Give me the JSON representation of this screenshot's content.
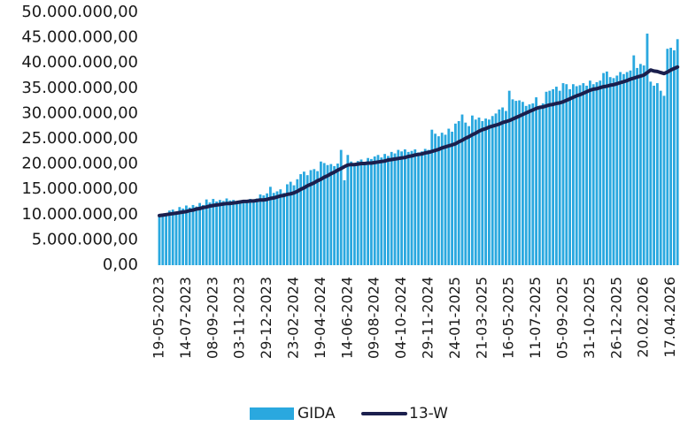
{
  "chart_data": {
    "type": "bar_line",
    "categories": [
      "19-05-2023",
      null,
      null,
      null,
      null,
      null,
      null,
      null,
      "14-07-2023",
      null,
      null,
      null,
      null,
      null,
      null,
      null,
      "08-09-2023",
      null,
      null,
      null,
      null,
      null,
      null,
      null,
      "03-11-2023",
      null,
      null,
      null,
      null,
      null,
      null,
      null,
      "29-12-2023",
      null,
      null,
      null,
      null,
      null,
      null,
      null,
      "23-02-2024",
      null,
      null,
      null,
      null,
      null,
      null,
      null,
      "19-04-2024",
      null,
      null,
      null,
      null,
      null,
      null,
      null,
      "14-06-2024",
      null,
      null,
      null,
      null,
      null,
      null,
      null,
      "09-08-2024",
      null,
      null,
      null,
      null,
      null,
      null,
      null,
      "04-10-2024",
      null,
      null,
      null,
      null,
      null,
      null,
      null,
      "29-11-2024",
      null,
      null,
      null,
      null,
      null,
      null,
      null,
      "24-01-2025",
      null,
      null,
      null,
      null,
      null,
      null,
      null,
      "21-03-2025",
      null,
      null,
      null,
      null,
      null,
      null,
      null,
      "16-05-2025",
      null,
      null,
      null,
      null,
      null,
      null,
      null,
      "11-07-2025",
      null,
      null,
      null,
      null,
      null,
      null,
      null,
      "05-09-2025",
      null,
      null,
      null,
      null,
      null,
      null,
      null,
      "31-10-2025",
      null,
      null,
      null,
      null,
      null,
      null,
      null,
      "26-12-2025",
      null,
      null,
      null,
      null,
      null,
      null,
      null,
      "20.02.2026",
      null,
      null,
      null,
      null,
      null,
      null,
      null,
      "17.04.2026",
      null,
      null
    ],
    "series": [
      {
        "name": "GIDA",
        "type": "bar",
        "color": "#2aa8df",
        "values": [
          9900000,
          10200000,
          10300000,
          10800000,
          11000000,
          10600000,
          11500000,
          11200000,
          11800000,
          11400000,
          11900000,
          11600000,
          12300000,
          11900000,
          13000000,
          12400000,
          13100000,
          12600000,
          12900000,
          12700000,
          13200000,
          12800000,
          12900000,
          12600000,
          12800000,
          12700000,
          12900000,
          13100000,
          12800000,
          13200000,
          14000000,
          13800000,
          14200000,
          15500000,
          14300000,
          14600000,
          15000000,
          14300000,
          16000000,
          16500000,
          15800000,
          17000000,
          18000000,
          18500000,
          17800000,
          18800000,
          19000000,
          18600000,
          20500000,
          20200000,
          19800000,
          20000000,
          19600000,
          20100000,
          22800000,
          16800000,
          21800000,
          20500000,
          20200000,
          20600000,
          20900000,
          20300000,
          21200000,
          21000000,
          21500000,
          21800000,
          21300000,
          22000000,
          21600000,
          22400000,
          22100000,
          22800000,
          22500000,
          22900000,
          22400000,
          22600000,
          22900000,
          22300000,
          22500000,
          23000000,
          22800000,
          26800000,
          26000000,
          25500000,
          26200000,
          25800000,
          27000000,
          26400000,
          28000000,
          28500000,
          29800000,
          28200000,
          27500000,
          29600000,
          28800000,
          29200000,
          28500000,
          29000000,
          28800000,
          29500000,
          30000000,
          30800000,
          31200000,
          30500000,
          34500000,
          32800000,
          32500000,
          32600000,
          32300000,
          31500000,
          31800000,
          32000000,
          33200000,
          31500000,
          32000000,
          34300000,
          34500000,
          34800000,
          35300000,
          34500000,
          36000000,
          35800000,
          34800000,
          35800000,
          35400000,
          35600000,
          36000000,
          35500000,
          36500000,
          35800000,
          36200000,
          36500000,
          38000000,
          38300000,
          37200000,
          37000000,
          37500000,
          38200000,
          37800000,
          38200000,
          38500000,
          41500000,
          39000000,
          39800000,
          39500000,
          45800000,
          36300000,
          35500000,
          36000000,
          34500000,
          33500000,
          42800000,
          43000000,
          42500000,
          44700000
        ]
      },
      {
        "name": "13-W",
        "type": "line",
        "color": "#1b1f4d",
        "values": [
          9800000,
          9900000,
          10000000,
          10100000,
          10200000,
          10300000,
          10400000,
          10500000,
          10600000,
          10800000,
          10900000,
          11100000,
          11200000,
          11400000,
          11500000,
          11700000,
          11800000,
          11900000,
          12000000,
          12100000,
          12200000,
          12200000,
          12300000,
          12400000,
          12500000,
          12600000,
          12600000,
          12700000,
          12700000,
          12800000,
          12900000,
          12900000,
          13000000,
          13200000,
          13300000,
          13500000,
          13700000,
          13800000,
          14000000,
          14100000,
          14300000,
          14600000,
          15000000,
          15300000,
          15700000,
          16000000,
          16300000,
          16700000,
          17000000,
          17400000,
          17700000,
          18100000,
          18400000,
          18800000,
          19100000,
          19500000,
          19800000,
          19900000,
          19900000,
          20000000,
          20100000,
          20100000,
          20200000,
          20200000,
          20300000,
          20400000,
          20500000,
          20600000,
          20800000,
          20900000,
          21000000,
          21100000,
          21200000,
          21300000,
          21500000,
          21600000,
          21800000,
          21900000,
          22000000,
          22200000,
          22300000,
          22500000,
          22700000,
          22900000,
          23200000,
          23400000,
          23600000,
          23800000,
          24000000,
          24400000,
          24700000,
          25100000,
          25400000,
          25800000,
          26100000,
          26500000,
          26800000,
          27000000,
          27300000,
          27500000,
          27700000,
          27900000,
          28200000,
          28400000,
          28600000,
          28900000,
          29200000,
          29500000,
          29800000,
          30100000,
          30400000,
          30700000,
          31000000,
          31200000,
          31300000,
          31500000,
          31700000,
          31800000,
          32000000,
          32100000,
          32300000,
          32600000,
          32900000,
          33200000,
          33500000,
          33700000,
          34000000,
          34300000,
          34600000,
          34800000,
          34900000,
          35100000,
          35300000,
          35400000,
          35600000,
          35700000,
          35900000,
          36100000,
          36300000,
          36500000,
          36800000,
          37000000,
          37200000,
          37400000,
          37600000,
          38100000,
          38600000,
          38400000,
          38300000,
          38100000,
          37900000,
          38200000,
          38600000,
          38900000,
          39200000
        ]
      }
    ],
    "ylim": [
      0,
      50000000
    ],
    "yticks": [
      {
        "value": 0,
        "label": "0,00"
      },
      {
        "value": 5000000,
        "label": "5.000.000,00"
      },
      {
        "value": 10000000,
        "label": "10.000.000,00"
      },
      {
        "value": 15000000,
        "label": "15.000.000,00"
      },
      {
        "value": 20000000,
        "label": "20.000.000,00"
      },
      {
        "value": 25000000,
        "label": "25.000.000,00"
      },
      {
        "value": 30000000,
        "label": "30.000.000,00"
      },
      {
        "value": 35000000,
        "label": "35.000.000,00"
      },
      {
        "value": 40000000,
        "label": "40.000.000,00"
      },
      {
        "value": 45000000,
        "label": "45.000.000,00"
      },
      {
        "value": 50000000,
        "label": "50.000.000,00"
      }
    ],
    "grid": false,
    "legend": "bottom"
  }
}
